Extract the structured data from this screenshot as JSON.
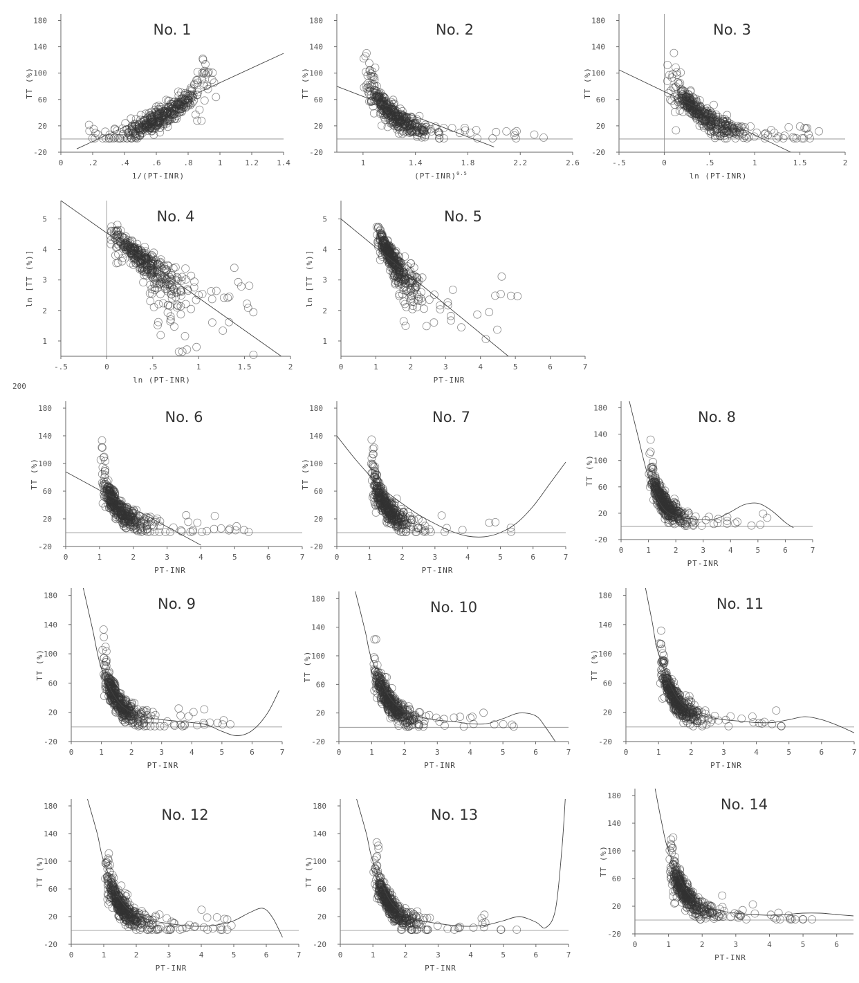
{
  "figure": {
    "stray_label": "200"
  },
  "chart_data": [
    {
      "id": "no1",
      "type": "scatter",
      "title": "No. 1",
      "xlabel": "1/(PT-INR)",
      "ylabel": "TT (%)",
      "xlim": [
        0,
        1.4
      ],
      "ylim": [
        -20,
        190
      ],
      "xticks": [
        0,
        0.2,
        0.4,
        0.6,
        0.8,
        1,
        1.2,
        1.4
      ],
      "xticklabels": [
        "0",
        ".2",
        ".4",
        ".6",
        ".8",
        "1",
        "1.2",
        "1.4"
      ],
      "yticks": [
        -20,
        20,
        60,
        100,
        140,
        180
      ],
      "yticklabels": [
        "-20",
        "20",
        "60",
        "100",
        "140",
        "180"
      ],
      "fit": {
        "kind": "line",
        "x": [
          0.1,
          1.4
        ],
        "y": [
          -15,
          130
        ]
      },
      "ref_line_y": 0,
      "cloud": "inverse"
    },
    {
      "id": "no2",
      "type": "scatter",
      "title": "No. 2",
      "xlabel": "(PT-INR)",
      "xlabel_sup": "0.5",
      "ylabel": "TT (%)",
      "xlim": [
        0.8,
        2.6
      ],
      "ylim": [
        -20,
        190
      ],
      "xticks": [
        1,
        1.4,
        1.8,
        2.2,
        2.6
      ],
      "xticklabels": [
        "1",
        "1.4",
        "1.8",
        "2.2",
        "2.6"
      ],
      "yticks": [
        -20,
        20,
        60,
        100,
        140,
        180
      ],
      "yticklabels": [
        "-20",
        "20",
        "60",
        "100",
        "140",
        "180"
      ],
      "fit": {
        "kind": "line",
        "x": [
          0.8,
          2.0
        ],
        "y": [
          80,
          -12
        ]
      },
      "ref_line_y": 0,
      "cloud": "sqrt"
    },
    {
      "id": "no3",
      "type": "scatter",
      "title": "No. 3",
      "xlabel": "ln (PT-INR)",
      "ylabel": "TT (%)",
      "xlim": [
        -0.5,
        2
      ],
      "ylim": [
        -20,
        190
      ],
      "xticks": [
        -0.5,
        0,
        0.5,
        1,
        1.5,
        2
      ],
      "xticklabels": [
        "-.5",
        "0",
        ".5",
        "1",
        "1.5",
        "2"
      ],
      "yticks": [
        -20,
        20,
        60,
        100,
        140,
        180
      ],
      "yticklabels": [
        "-20",
        "20",
        "60",
        "100",
        "140",
        "180"
      ],
      "fit": {
        "kind": "line",
        "x": [
          -0.5,
          1.4
        ],
        "y": [
          105,
          -20
        ]
      },
      "ref_line_y": 0,
      "ref_line_x": 0,
      "cloud": "log"
    },
    {
      "id": "no4",
      "type": "scatter",
      "title": "No. 4",
      "xlabel": "ln (PT-INR)",
      "ylabel": "ln [TT (%)]",
      "xlim": [
        -0.5,
        2
      ],
      "ylim": [
        0.5,
        5.6
      ],
      "xticks": [
        -0.5,
        0,
        0.5,
        1,
        1.5,
        2
      ],
      "xticklabels": [
        "-.5",
        "0",
        ".5",
        "1",
        "1.5",
        "2"
      ],
      "yticks": [
        1,
        2,
        3,
        4,
        5
      ],
      "yticklabels": [
        "1",
        "2",
        "3",
        "4",
        "5"
      ],
      "fit": {
        "kind": "line",
        "x": [
          -0.5,
          1.9
        ],
        "y": [
          5.6,
          0.5
        ]
      },
      "ref_line_x": 0,
      "cloud": "loglog"
    },
    {
      "id": "no5",
      "type": "scatter",
      "title": "No. 5",
      "xlabel": "PT-INR",
      "ylabel": "ln [TT (%)]",
      "xlim": [
        0,
        7
      ],
      "ylim": [
        0.5,
        5.6
      ],
      "xticks": [
        0,
        1,
        2,
        3,
        4,
        5,
        6,
        7
      ],
      "xticklabels": [
        "0",
        "1",
        "2",
        "3",
        "4",
        "5",
        "6",
        "7"
      ],
      "yticks": [
        1,
        2,
        3,
        4,
        5
      ],
      "yticklabels": [
        "1",
        "2",
        "3",
        "4",
        "5"
      ],
      "fit": {
        "kind": "line",
        "x": [
          0,
          4.8
        ],
        "y": [
          5.0,
          0.5
        ]
      },
      "cloud": "lnlin"
    },
    {
      "id": "no6",
      "type": "scatter",
      "title": "No. 6",
      "xlabel": "PT-INR",
      "ylabel": "TT (%)",
      "xlim": [
        0,
        7
      ],
      "ylim": [
        -20,
        190
      ],
      "xticks": [
        0,
        1,
        2,
        3,
        4,
        5,
        6,
        7
      ],
      "xticklabels": [
        "0",
        "1",
        "2",
        "3",
        "4",
        "5",
        "6",
        "7"
      ],
      "yticks": [
        -20,
        20,
        60,
        100,
        140,
        180
      ],
      "yticklabels": [
        "-20",
        "20",
        "60",
        "100",
        "140",
        "180"
      ],
      "fit": {
        "kind": "line",
        "x": [
          0,
          4.0
        ],
        "y": [
          88,
          -18
        ]
      },
      "ref_line_y": 0,
      "cloud": "lin"
    },
    {
      "id": "no7",
      "type": "scatter",
      "title": "No. 7",
      "xlabel": "PT-INR",
      "ylabel": "TT (%)",
      "xlim": [
        0,
        7
      ],
      "ylim": [
        -20,
        190
      ],
      "xticks": [
        0,
        1,
        2,
        3,
        4,
        5,
        6,
        7
      ],
      "xticklabels": [
        "0",
        "1",
        "2",
        "3",
        "4",
        "5",
        "6",
        "7"
      ],
      "yticks": [
        -20,
        20,
        60,
        100,
        140,
        180
      ],
      "yticklabels": [
        "-20",
        "20",
        "60",
        "100",
        "140",
        "180"
      ],
      "fit": {
        "kind": "curve",
        "x": [
          0,
          0.5,
          1,
          1.5,
          2,
          2.5,
          3,
          3.5,
          4,
          4.5,
          5,
          5.5,
          6,
          6.5,
          7
        ],
        "y": [
          140,
          110,
          83,
          60,
          42,
          26,
          13,
          2,
          -5,
          -6,
          0,
          14,
          38,
          70,
          102
        ]
      },
      "ref_line_y": 0,
      "cloud": "lin"
    },
    {
      "id": "no8",
      "type": "scatter",
      "title": "No. 8",
      "xlabel": "PT-INR",
      "ylabel": "TT (%)",
      "xlim": [
        0,
        7
      ],
      "ylim": [
        -20,
        190
      ],
      "xticks": [
        0,
        1,
        2,
        3,
        4,
        5,
        6,
        7
      ],
      "xticklabels": [
        "0",
        "1",
        "2",
        "3",
        "4",
        "5",
        "6",
        "7"
      ],
      "yticks": [
        -20,
        20,
        60,
        100,
        140,
        180
      ],
      "yticklabels": [
        "-20",
        "20",
        "60",
        "100",
        "140",
        "180"
      ],
      "fit": {
        "kind": "curve",
        "x": [
          0.3,
          0.6,
          1,
          1.5,
          2,
          2.5,
          3,
          3.5,
          4,
          4.5,
          5,
          5.5,
          6,
          6.3
        ],
        "y": [
          190,
          140,
          75,
          30,
          15,
          12,
          10,
          12,
          22,
          33,
          35,
          24,
          6,
          -2
        ]
      },
      "ref_line_y": 0,
      "cloud": "lin"
    },
    {
      "id": "no9",
      "type": "scatter",
      "title": "No. 9",
      "xlabel": "PT-INR",
      "ylabel": "TT (%)",
      "xlim": [
        0,
        7
      ],
      "ylim": [
        -20,
        190
      ],
      "xticks": [
        0,
        1,
        2,
        3,
        4,
        5,
        6,
        7
      ],
      "xticklabels": [
        "0",
        "1",
        "2",
        "3",
        "4",
        "5",
        "6",
        "7"
      ],
      "yticks": [
        -20,
        20,
        60,
        100,
        140,
        180
      ],
      "yticklabels": [
        "-20",
        "20",
        "60",
        "100",
        "140",
        "180"
      ],
      "fit": {
        "kind": "curve",
        "x": [
          0.4,
          0.7,
          1,
          1.5,
          2,
          2.5,
          3,
          3.5,
          4,
          4.5,
          5,
          5.5,
          6,
          6.5,
          6.9
        ],
        "y": [
          190,
          135,
          80,
          38,
          20,
          13,
          10,
          8,
          6,
          3,
          -6,
          -12,
          -5,
          18,
          50
        ]
      },
      "ref_line_y": 0,
      "cloud": "lin"
    },
    {
      "id": "no10",
      "type": "scatter",
      "title": "No. 10",
      "xlabel": "PT-INR",
      "ylabel": "TT (%)",
      "xlim": [
        0,
        7
      ],
      "ylim": [
        -20,
        190
      ],
      "xticks": [
        0,
        1,
        2,
        3,
        4,
        5,
        6,
        7
      ],
      "xticklabels": [
        "0",
        "1",
        "2",
        "3",
        "4",
        "5",
        "6",
        "7"
      ],
      "yticks": [
        -20,
        20,
        60,
        100,
        140,
        180
      ],
      "yticklabels": [
        "-20",
        "20",
        "60",
        "100",
        "140",
        "180"
      ],
      "fit": {
        "kind": "curve",
        "x": [
          0.5,
          0.8,
          1,
          1.5,
          2,
          2.5,
          3,
          3.5,
          4,
          4.5,
          5,
          5.5,
          6,
          6.3,
          6.6
        ],
        "y": [
          190,
          135,
          95,
          45,
          22,
          14,
          10,
          8,
          5,
          5,
          12,
          20,
          16,
          0,
          -20
        ]
      },
      "ref_line_y": 0,
      "cloud": "lin"
    },
    {
      "id": "no11",
      "type": "scatter",
      "title": "No. 11",
      "xlabel": "PT-INR",
      "ylabel": "TT (%)",
      "xlim": [
        0,
        7
      ],
      "ylim": [
        -20,
        190
      ],
      "xticks": [
        0,
        1,
        2,
        3,
        4,
        5,
        6,
        7
      ],
      "xticklabels": [
        "0",
        "1",
        "2",
        "3",
        "4",
        "5",
        "6",
        "7"
      ],
      "yticks": [
        -20,
        20,
        60,
        100,
        140,
        180
      ],
      "yticklabels": [
        "-20",
        "20",
        "60",
        "100",
        "140",
        "180"
      ],
      "fit": {
        "kind": "curve",
        "x": [
          0.6,
          0.8,
          1,
          1.5,
          2,
          2.5,
          3,
          3.5,
          4,
          4.5,
          5,
          5.5,
          6,
          6.5,
          7
        ],
        "y": [
          190,
          145,
          100,
          45,
          22,
          14,
          10,
          8,
          6,
          6,
          10,
          14,
          10,
          2,
          -8
        ]
      },
      "ref_line_y": 0,
      "cloud": "lin"
    },
    {
      "id": "no12",
      "type": "scatter",
      "title": "No. 12",
      "xlabel": "PT-INR",
      "ylabel": "TT (%)",
      "xlim": [
        0,
        7
      ],
      "ylim": [
        -20,
        190
      ],
      "xticks": [
        0,
        1,
        2,
        3,
        4,
        5,
        6,
        7
      ],
      "xticklabels": [
        "0",
        "1",
        "2",
        "3",
        "4",
        "5",
        "6",
        "7"
      ],
      "yticks": [
        -20,
        20,
        60,
        100,
        140,
        180
      ],
      "yticklabels": [
        "-20",
        "20",
        "60",
        "100",
        "140",
        "180"
      ],
      "fit": {
        "kind": "curve",
        "x": [
          0.5,
          0.8,
          1,
          1.5,
          2,
          2.5,
          3,
          3.5,
          4,
          4.5,
          5,
          5.5,
          5.9,
          6.2,
          6.5
        ],
        "y": [
          190,
          140,
          100,
          45,
          22,
          14,
          10,
          7,
          6,
          8,
          14,
          26,
          32,
          18,
          -10
        ]
      },
      "ref_line_y": 0,
      "cloud": "lin"
    },
    {
      "id": "no13",
      "type": "scatter",
      "title": "No. 13",
      "xlabel": "PT-INR",
      "ylabel": "TT (%)",
      "xlim": [
        0,
        7
      ],
      "ylim": [
        -20,
        190
      ],
      "xticks": [
        0,
        1,
        2,
        3,
        4,
        5,
        6,
        7
      ],
      "xticklabels": [
        "0",
        "1",
        "2",
        "3",
        "4",
        "5",
        "6",
        "7"
      ],
      "yticks": [
        -20,
        20,
        60,
        100,
        140,
        180
      ],
      "yticklabels": [
        "-20",
        "20",
        "60",
        "100",
        "140",
        "180"
      ],
      "fit": {
        "kind": "curve",
        "x": [
          0.5,
          0.8,
          1,
          1.5,
          2,
          2.5,
          3,
          3.5,
          4,
          4.5,
          5,
          5.5,
          6,
          6.3,
          6.6,
          6.8,
          6.9
        ],
        "y": [
          190,
          140,
          100,
          45,
          22,
          14,
          10,
          7,
          6,
          8,
          14,
          20,
          12,
          4,
          30,
          120,
          190
        ]
      },
      "ref_line_y": 0,
      "cloud": "lin"
    },
    {
      "id": "no14",
      "type": "scatter",
      "title": "No. 14",
      "xlabel": "PT-INR",
      "ylabel": "TT (%)",
      "xlim": [
        0,
        6.5
      ],
      "ylim": [
        -20,
        190
      ],
      "xticks": [
        0,
        1,
        2,
        3,
        4,
        5,
        6
      ],
      "xticklabels": [
        "0",
        "1",
        "2",
        "3",
        "4",
        "5",
        "6"
      ],
      "yticks": [
        -20,
        20,
        60,
        100,
        140,
        180
      ],
      "yticklabels": [
        "-20",
        "20",
        "60",
        "100",
        "140",
        "180"
      ],
      "fit": {
        "kind": "curve",
        "x": [
          0.6,
          0.8,
          1,
          1.5,
          2,
          2.5,
          3,
          3.5,
          4,
          4.5,
          5,
          5.5,
          6,
          6.5
        ],
        "y": [
          190,
          140,
          100,
          45,
          22,
          14,
          10,
          8,
          7,
          8,
          10,
          10,
          8,
          6
        ]
      },
      "ref_line_y": 0,
      "cloud": "lin"
    }
  ]
}
